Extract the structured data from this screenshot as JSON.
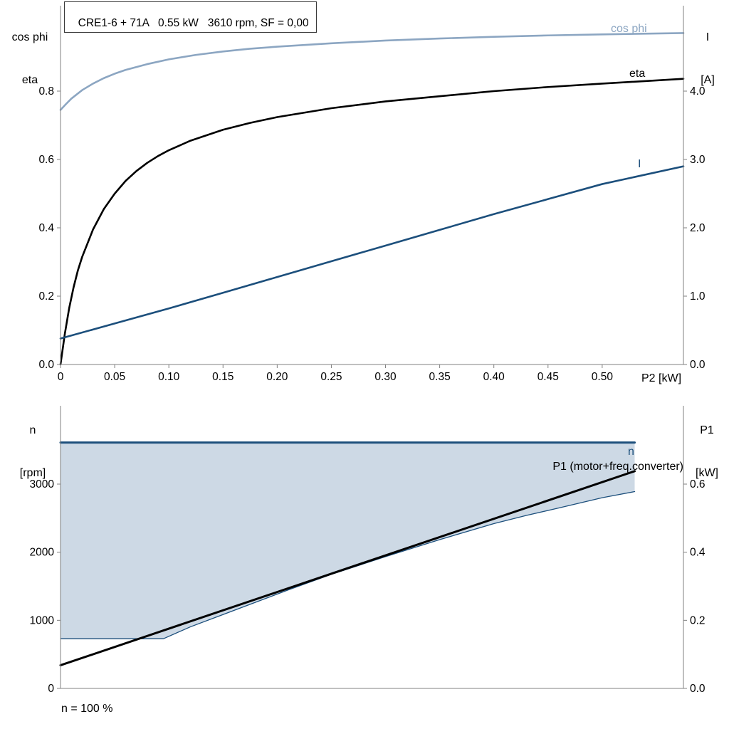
{
  "colors": {
    "cosphi": "#8ca6c2",
    "eta": "#000000",
    "current": "#1c4f7c",
    "n_line": "#1c4f7c",
    "p1": "#000000",
    "fill": "#cdd9e5",
    "axis": "#808080"
  },
  "top_chart": {
    "title": "CRE1-6 + 71A   0.55 kW   3610 rpm, SF = 0,00",
    "corner_left": [
      "cos phi",
      "eta"
    ],
    "corner_right": [
      "I",
      "[A]"
    ],
    "x_axis_label": "P2 [kW]",
    "curve_label_cosphi": "cos phi",
    "curve_label_eta": "eta",
    "curve_label_current": "I"
  },
  "bottom_chart": {
    "corner_left": [
      "n",
      "[rpm]"
    ],
    "corner_right": [
      "P1",
      "[kW]"
    ],
    "curve_label_n": "n",
    "curve_label_p1": "P1 (motor+freq.converter)",
    "footnote": "n = 100 %"
  },
  "chart_data": [
    {
      "type": "line",
      "title": "CRE1-6 + 71A   0.55 kW   3610 rpm, SF = 0,00",
      "xlabel": "P2 [kW]",
      "xlim": [
        0,
        0.575
      ],
      "x_ticks": {
        "values": [
          0,
          0.05,
          0.1,
          0.15,
          0.2,
          0.25,
          0.3,
          0.35,
          0.4,
          0.45,
          0.5
        ],
        "labels": [
          "0",
          "0.05",
          "0.10",
          "0.15",
          "0.20",
          "0.25",
          "0.30",
          "0.35",
          "0.40",
          "0.45",
          "0.50"
        ]
      },
      "y_left": {
        "label": "cos phi / eta",
        "lim": [
          0,
          1.05
        ],
        "ticks": [
          0,
          0.2,
          0.4,
          0.6,
          0.8
        ],
        "labels": [
          "0.0",
          "0.2",
          "0.4",
          "0.6",
          "0.8"
        ]
      },
      "y_right": {
        "label": "I [A]",
        "lim": [
          0,
          5.25
        ],
        "ticks": [
          0,
          1.0,
          2.0,
          3.0,
          4.0
        ],
        "labels": [
          "0.0",
          "1.0",
          "2.0",
          "3.0",
          "4.0"
        ]
      },
      "series": [
        {
          "name": "cos phi",
          "axis": "left",
          "color": "#8ca6c2",
          "width": 2.6,
          "x": [
            0,
            0.005,
            0.01,
            0.02,
            0.03,
            0.04,
            0.05,
            0.06,
            0.08,
            0.1,
            0.125,
            0.15,
            0.175,
            0.2,
            0.25,
            0.3,
            0.35,
            0.4,
            0.45,
            0.5,
            0.575
          ],
          "y": [
            0.745,
            0.762,
            0.778,
            0.803,
            0.822,
            0.838,
            0.851,
            0.862,
            0.879,
            0.893,
            0.906,
            0.916,
            0.924,
            0.93,
            0.94,
            0.948,
            0.954,
            0.959,
            0.963,
            0.966,
            0.97
          ]
        },
        {
          "name": "eta",
          "axis": "left",
          "color": "#000000",
          "width": 2.6,
          "x": [
            0,
            0.004,
            0.008,
            0.012,
            0.016,
            0.02,
            0.03,
            0.04,
            0.05,
            0.06,
            0.07,
            0.08,
            0.09,
            0.1,
            0.12,
            0.15,
            0.175,
            0.2,
            0.25,
            0.3,
            0.35,
            0.4,
            0.45,
            0.5,
            0.575
          ],
          "y": [
            0,
            0.09,
            0.165,
            0.225,
            0.275,
            0.315,
            0.395,
            0.455,
            0.5,
            0.537,
            0.566,
            0.59,
            0.61,
            0.627,
            0.655,
            0.687,
            0.707,
            0.724,
            0.75,
            0.77,
            0.785,
            0.8,
            0.812,
            0.822,
            0.836
          ]
        },
        {
          "name": "I",
          "axis": "right",
          "color": "#1c4f7c",
          "width": 2.6,
          "x": [
            0,
            0.05,
            0.1,
            0.15,
            0.2,
            0.25,
            0.3,
            0.35,
            0.4,
            0.45,
            0.5,
            0.575
          ],
          "y": [
            0.38,
            0.6,
            0.82,
            1.05,
            1.28,
            1.51,
            1.74,
            1.97,
            2.2,
            2.42,
            2.64,
            2.9
          ]
        }
      ]
    },
    {
      "type": "line",
      "title": "",
      "xlabel": "",
      "xlim": [
        0,
        0.575
      ],
      "x_ticks": {
        "values": [],
        "labels": []
      },
      "y_left": {
        "label": "n [rpm]",
        "lim": [
          0,
          4150
        ],
        "ticks": [
          0,
          1000,
          2000,
          3000
        ],
        "labels": [
          "0",
          "1000",
          "2000",
          "3000"
        ]
      },
      "y_right": {
        "label": "P1 [kW]",
        "lim": [
          0,
          0.83
        ],
        "ticks": [
          0,
          0.2,
          0.4,
          0.6
        ],
        "labels": [
          "0.0",
          "0.2",
          "0.4",
          "0.6"
        ]
      },
      "area": {
        "axis": "left",
        "color": "#cdd9e5",
        "upper": 3610,
        "x": [
          0,
          0.095,
          0.12,
          0.15,
          0.18,
          0.21,
          0.25,
          0.3,
          0.35,
          0.4,
          0.43,
          0.46,
          0.5,
          0.53
        ],
        "lower": [
          730,
          730,
          905,
          1085,
          1265,
          1445,
          1675,
          1935,
          2185,
          2420,
          2540,
          2650,
          2800,
          2890
        ]
      },
      "series": [
        {
          "name": "n range lower",
          "axis": "left",
          "color": "#1c4f7c",
          "width": 1.3,
          "x": [
            0,
            0.095,
            0.12,
            0.15,
            0.18,
            0.21,
            0.25,
            0.3,
            0.35,
            0.4,
            0.43,
            0.46,
            0.5,
            0.53
          ],
          "y": [
            730,
            730,
            905,
            1085,
            1265,
            1445,
            1675,
            1935,
            2185,
            2420,
            2540,
            2650,
            2800,
            2890
          ]
        },
        {
          "name": "n",
          "axis": "left",
          "color": "#1c4f7c",
          "width": 3,
          "x": [
            0,
            0.53
          ],
          "y": [
            3610,
            3610
          ]
        },
        {
          "name": "P1 (motor+freq.converter)",
          "axis": "right",
          "color": "#000000",
          "width": 3,
          "x": [
            0,
            0.53
          ],
          "y": [
            0.068,
            0.638
          ]
        }
      ]
    }
  ]
}
